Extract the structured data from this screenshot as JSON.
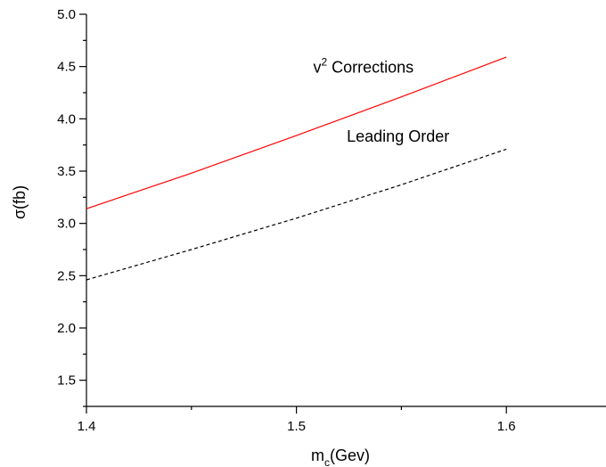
{
  "chart_data": {
    "type": "line",
    "title": "",
    "xlabel": "m",
    "xlabel_subscript": "c",
    "xlabel_suffix": "(Gev)",
    "ylabel": "σ(fb)",
    "xlim": [
      1.4,
      1.65
    ],
    "ylim": [
      1.25,
      5.0
    ],
    "x_ticks": [
      1.4,
      1.5,
      1.6
    ],
    "x_tick_labels": [
      "1.4",
      "1.5",
      "1.6"
    ],
    "x_minor_ticks": [
      1.45,
      1.55
    ],
    "y_ticks": [
      1.5,
      2.0,
      2.5,
      3.0,
      3.5,
      4.0,
      4.5,
      5.0
    ],
    "y_tick_labels": [
      "1.5",
      "2.0",
      "2.5",
      "3.0",
      "3.5",
      "4.0",
      "4.5",
      "5.0"
    ],
    "y_minor_ticks": [
      1.25,
      1.75,
      2.25,
      2.75,
      3.25,
      3.75,
      4.25,
      4.75
    ],
    "grid": false,
    "series": [
      {
        "name": "v2 Corrections",
        "color": "#ff0000",
        "dash": "solid",
        "x": [
          1.4,
          1.45,
          1.5,
          1.55,
          1.6
        ],
        "y": [
          3.14,
          3.48,
          3.84,
          4.21,
          4.59
        ]
      },
      {
        "name": "Leading Order",
        "color": "#000000",
        "dash": "dashed",
        "x": [
          1.4,
          1.45,
          1.5,
          1.55,
          1.6
        ],
        "y": [
          2.46,
          2.75,
          3.05,
          3.37,
          3.71
        ]
      }
    ],
    "annotations": [
      {
        "name": "v2-annotation",
        "base": "v",
        "sup": "2",
        "rest": " Corrections",
        "x": 1.508,
        "y": 4.44
      },
      {
        "name": "lo-annotation",
        "text": "Leading Order",
        "x": 1.524,
        "y": 3.78
      }
    ]
  }
}
